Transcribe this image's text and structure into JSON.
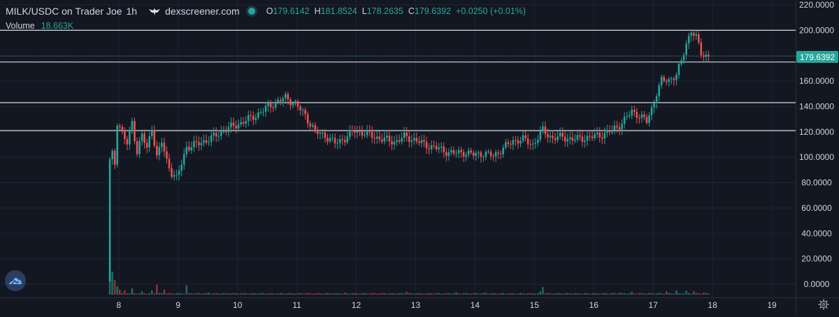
{
  "legend": {
    "pair": "MILK/USDC on Trader Joe",
    "interval": "1h",
    "source": "dexscreener.com",
    "o_label": "O",
    "o_value": "179.6142",
    "h_label": "H",
    "h_value": "181.8524",
    "l_label": "L",
    "l_value": "178.2635",
    "c_label": "C",
    "c_value": "179.6392",
    "change": "+0.0250 (+0.01%)"
  },
  "volume_legend": {
    "label": "Volume",
    "value": "18.663K"
  },
  "last_price": "179.6392",
  "colors": {
    "background": "#131722",
    "up": "#26a69a",
    "down": "#ef5350",
    "grid": "#1f2433",
    "text": "#d1d4dc",
    "hline": "#d8dbe2",
    "logo": "#4a90e2"
  },
  "icons": [
    "eagle-icon",
    "status-dot",
    "dexscreener-logo-icon",
    "gear-icon"
  ],
  "chart_data": {
    "type": "candlestick",
    "ylim": [
      -5,
      225
    ],
    "y_ticks": [
      "220.0000",
      "200.0000",
      "180.0000",
      "160.0000",
      "140.0000",
      "120.0000",
      "100.0000",
      "80.0000",
      "60.0000",
      "40.0000",
      "20.0000",
      "0.0000"
    ],
    "y_tick_values": [
      220,
      200,
      180,
      160,
      140,
      120,
      100,
      80,
      60,
      40,
      20,
      0
    ],
    "x_ticks": [
      "8",
      "9",
      "10",
      "11",
      "12",
      "13",
      "14",
      "15",
      "16",
      "17",
      "18",
      "19"
    ],
    "x_tick_days": [
      8,
      9,
      10,
      11,
      12,
      13,
      14,
      15,
      16,
      17,
      18,
      19
    ],
    "xlim_days": [
      6.0,
      19.4
    ],
    "start_day": 7.85,
    "hours_per_candle": 1,
    "horizontal_lines": [
      200,
      175,
      143,
      121
    ],
    "last_price_value": 179.6392,
    "close_path": [
      [
        0,
        97
      ],
      [
        1,
        102
      ],
      [
        2,
        95
      ],
      [
        3,
        128
      ],
      [
        5,
        120
      ],
      [
        7,
        110
      ],
      [
        9,
        128
      ],
      [
        11,
        104
      ],
      [
        13,
        118
      ],
      [
        15,
        106
      ],
      [
        17,
        124
      ],
      [
        19,
        100
      ],
      [
        21,
        112
      ],
      [
        23,
        97
      ],
      [
        25,
        88
      ],
      [
        27,
        83
      ],
      [
        29,
        95
      ],
      [
        31,
        108
      ],
      [
        35,
        110
      ],
      [
        41,
        115
      ],
      [
        47,
        122
      ],
      [
        53,
        127
      ],
      [
        59,
        133
      ],
      [
        65,
        141
      ],
      [
        71,
        147
      ],
      [
        75,
        142
      ],
      [
        79,
        133
      ],
      [
        83,
        120
      ],
      [
        87,
        117
      ],
      [
        91,
        111
      ],
      [
        95,
        115
      ],
      [
        99,
        121
      ],
      [
        103,
        119
      ],
      [
        107,
        116
      ],
      [
        111,
        114
      ],
      [
        115,
        112
      ],
      [
        119,
        116
      ],
      [
        123,
        114
      ],
      [
        127,
        110
      ],
      [
        131,
        108
      ],
      [
        135,
        105
      ],
      [
        139,
        103
      ],
      [
        143,
        104
      ],
      [
        147,
        102
      ],
      [
        151,
        103
      ],
      [
        155,
        101
      ],
      [
        159,
        107
      ],
      [
        163,
        113
      ],
      [
        167,
        114
      ],
      [
        171,
        110
      ],
      [
        175,
        121
      ],
      [
        179,
        115
      ],
      [
        183,
        116
      ],
      [
        187,
        114
      ],
      [
        191,
        115
      ],
      [
        195,
        116
      ],
      [
        199,
        118
      ],
      [
        203,
        121
      ],
      [
        207,
        127
      ],
      [
        211,
        136
      ],
      [
        214,
        133
      ],
      [
        217,
        128
      ],
      [
        219,
        138
      ],
      [
        221,
        151
      ],
      [
        223,
        160
      ],
      [
        226,
        161
      ],
      [
        229,
        165
      ],
      [
        231,
        175
      ],
      [
        233,
        190
      ],
      [
        235,
        200
      ],
      [
        237,
        194
      ],
      [
        239,
        182
      ],
      [
        241,
        180
      ],
      [
        242,
        180
      ]
    ],
    "volume_spikes": [
      [
        0,
        0.95
      ],
      [
        1,
        0.55
      ],
      [
        2,
        0.35
      ],
      [
        3,
        0.2
      ],
      [
        4,
        0.12
      ],
      [
        6,
        0.1
      ],
      [
        9,
        0.15
      ],
      [
        13,
        0.08
      ],
      [
        17,
        0.1
      ],
      [
        19,
        0.24
      ],
      [
        22,
        0.12
      ],
      [
        31,
        0.22
      ],
      [
        40,
        0.05
      ],
      [
        95,
        0.05
      ],
      [
        120,
        0.07
      ],
      [
        140,
        0.06
      ],
      [
        152,
        0.05
      ],
      [
        174,
        0.08
      ],
      [
        175,
        0.18
      ],
      [
        206,
        0.05
      ],
      [
        211,
        0.07
      ],
      [
        225,
        0.08
      ],
      [
        229,
        0.1
      ],
      [
        233,
        0.09
      ],
      [
        236,
        0.08
      ],
      [
        240,
        0.05
      ]
    ]
  }
}
